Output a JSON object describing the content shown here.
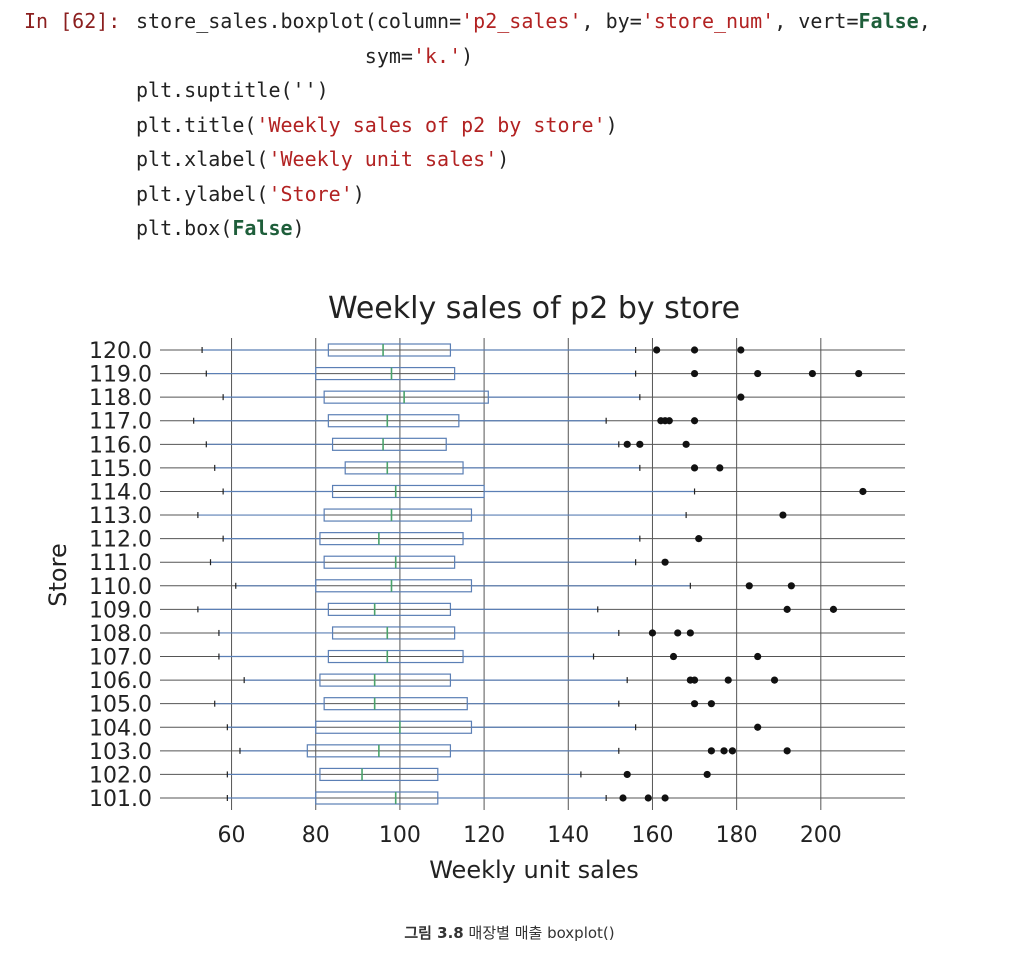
{
  "code_cell": {
    "prompt": "In [62]:",
    "lines": [
      [
        {
          "t": "store_sales.boxplot(column=",
          "c": "plain"
        },
        {
          "t": "'p2_sales'",
          "c": "str"
        },
        {
          "t": ", by=",
          "c": "plain"
        },
        {
          "t": "'store_num'",
          "c": "str"
        },
        {
          "t": ", vert=",
          "c": "plain"
        },
        {
          "t": "False",
          "c": "kw"
        },
        {
          "t": ",",
          "c": "plain"
        }
      ],
      [
        {
          "t": "                   sym=",
          "c": "plain"
        },
        {
          "t": "'k.'",
          "c": "str"
        },
        {
          "t": ")",
          "c": "plain"
        }
      ],
      [
        {
          "t": "plt.suptitle(''",
          "c": "plain"
        },
        {
          "t": ")",
          "c": "plain"
        }
      ],
      [
        {
          "t": "plt.title(",
          "c": "plain"
        },
        {
          "t": "'Weekly sales of p2 by store'",
          "c": "str"
        },
        {
          "t": ")",
          "c": "plain"
        }
      ],
      [
        {
          "t": "plt.xlabel(",
          "c": "plain"
        },
        {
          "t": "'Weekly unit sales'",
          "c": "str"
        },
        {
          "t": ")",
          "c": "plain"
        }
      ],
      [
        {
          "t": "plt.ylabel(",
          "c": "plain"
        },
        {
          "t": "'Store'",
          "c": "str"
        },
        {
          "t": ")",
          "c": "plain"
        }
      ],
      [
        {
          "t": "plt.box(",
          "c": "plain"
        },
        {
          "t": "False",
          "c": "kw"
        },
        {
          "t": ")",
          "c": "plain"
        }
      ]
    ]
  },
  "colors": {
    "plain": "#222222",
    "str": "#b22222",
    "kw": "#1e5e3a",
    "prompt": "#8b1e1e",
    "box": "#5b7fb5",
    "median": "#4aa36b",
    "grid": "#555555",
    "flier": "#111111"
  },
  "chart_data": {
    "type": "boxplot",
    "orientation": "horizontal",
    "title": "Weekly sales of p2 by store",
    "xlabel": "Weekly unit sales",
    "ylabel": "Store",
    "xlim": [
      43,
      220
    ],
    "xticks": [
      60,
      80,
      100,
      120,
      140,
      160,
      180,
      200
    ],
    "grid": true,
    "frame": false,
    "stores": [
      {
        "label": "101.0",
        "whislo": 59,
        "q1": 80,
        "med": 99,
        "q3": 109,
        "whishi": 149,
        "fliers": [
          153,
          159,
          163
        ]
      },
      {
        "label": "102.0",
        "whislo": 59,
        "q1": 81,
        "med": 91,
        "q3": 109,
        "whishi": 143,
        "fliers": [
          154,
          173
        ]
      },
      {
        "label": "103.0",
        "whislo": 62,
        "q1": 78,
        "med": 95,
        "q3": 112,
        "whishi": 152,
        "fliers": [
          174,
          177,
          179,
          192
        ]
      },
      {
        "label": "104.0",
        "whislo": 59,
        "q1": 80,
        "med": 100,
        "q3": 117,
        "whishi": 156,
        "fliers": [
          185
        ]
      },
      {
        "label": "105.0",
        "whislo": 56,
        "q1": 82,
        "med": 94,
        "q3": 116,
        "whishi": 152,
        "fliers": [
          170,
          174
        ]
      },
      {
        "label": "106.0",
        "whislo": 63,
        "q1": 81,
        "med": 94,
        "q3": 112,
        "whishi": 154,
        "fliers": [
          169,
          170,
          178,
          189
        ]
      },
      {
        "label": "107.0",
        "whislo": 57,
        "q1": 83,
        "med": 97,
        "q3": 115,
        "whishi": 146,
        "fliers": [
          165,
          185
        ]
      },
      {
        "label": "108.0",
        "whislo": 57,
        "q1": 84,
        "med": 97,
        "q3": 113,
        "whishi": 152,
        "fliers": [
          160,
          166,
          169
        ]
      },
      {
        "label": "109.0",
        "whislo": 52,
        "q1": 83,
        "med": 94,
        "q3": 112,
        "whishi": 147,
        "fliers": [
          192,
          203
        ]
      },
      {
        "label": "110.0",
        "whislo": 61,
        "q1": 80,
        "med": 98,
        "q3": 117,
        "whishi": 169,
        "fliers": [
          183,
          193
        ]
      },
      {
        "label": "111.0",
        "whislo": 55,
        "q1": 82,
        "med": 99,
        "q3": 113,
        "whishi": 156,
        "fliers": [
          163
        ]
      },
      {
        "label": "112.0",
        "whislo": 58,
        "q1": 81,
        "med": 95,
        "q3": 115,
        "whishi": 157,
        "fliers": [
          171
        ]
      },
      {
        "label": "113.0",
        "whislo": 52,
        "q1": 82,
        "med": 98,
        "q3": 117,
        "whishi": 168,
        "fliers": [
          191
        ]
      },
      {
        "label": "114.0",
        "whislo": 58,
        "q1": 84,
        "med": 99,
        "q3": 120,
        "whishi": 170,
        "fliers": [
          210
        ]
      },
      {
        "label": "115.0",
        "whislo": 56,
        "q1": 87,
        "med": 97,
        "q3": 115,
        "whishi": 157,
        "fliers": [
          170,
          176
        ]
      },
      {
        "label": "116.0",
        "whislo": 54,
        "q1": 84,
        "med": 96,
        "q3": 111,
        "whishi": 152,
        "fliers": [
          154,
          157,
          168
        ]
      },
      {
        "label": "117.0",
        "whislo": 51,
        "q1": 83,
        "med": 97,
        "q3": 114,
        "whishi": 149,
        "fliers": [
          162,
          163,
          164,
          170
        ]
      },
      {
        "label": "118.0",
        "whislo": 58,
        "q1": 82,
        "med": 101,
        "q3": 121,
        "whishi": 157,
        "fliers": [
          181
        ]
      },
      {
        "label": "119.0",
        "whislo": 54,
        "q1": 80,
        "med": 98,
        "q3": 113,
        "whishi": 156,
        "fliers": [
          170,
          185,
          198,
          209
        ]
      },
      {
        "label": "120.0",
        "whislo": 53,
        "q1": 83,
        "med": 96,
        "q3": 112,
        "whishi": 156,
        "fliers": [
          161,
          170,
          181
        ]
      }
    ]
  },
  "caption": {
    "number": "그림 3.8",
    "text": "매장별 매출 boxplot()"
  }
}
